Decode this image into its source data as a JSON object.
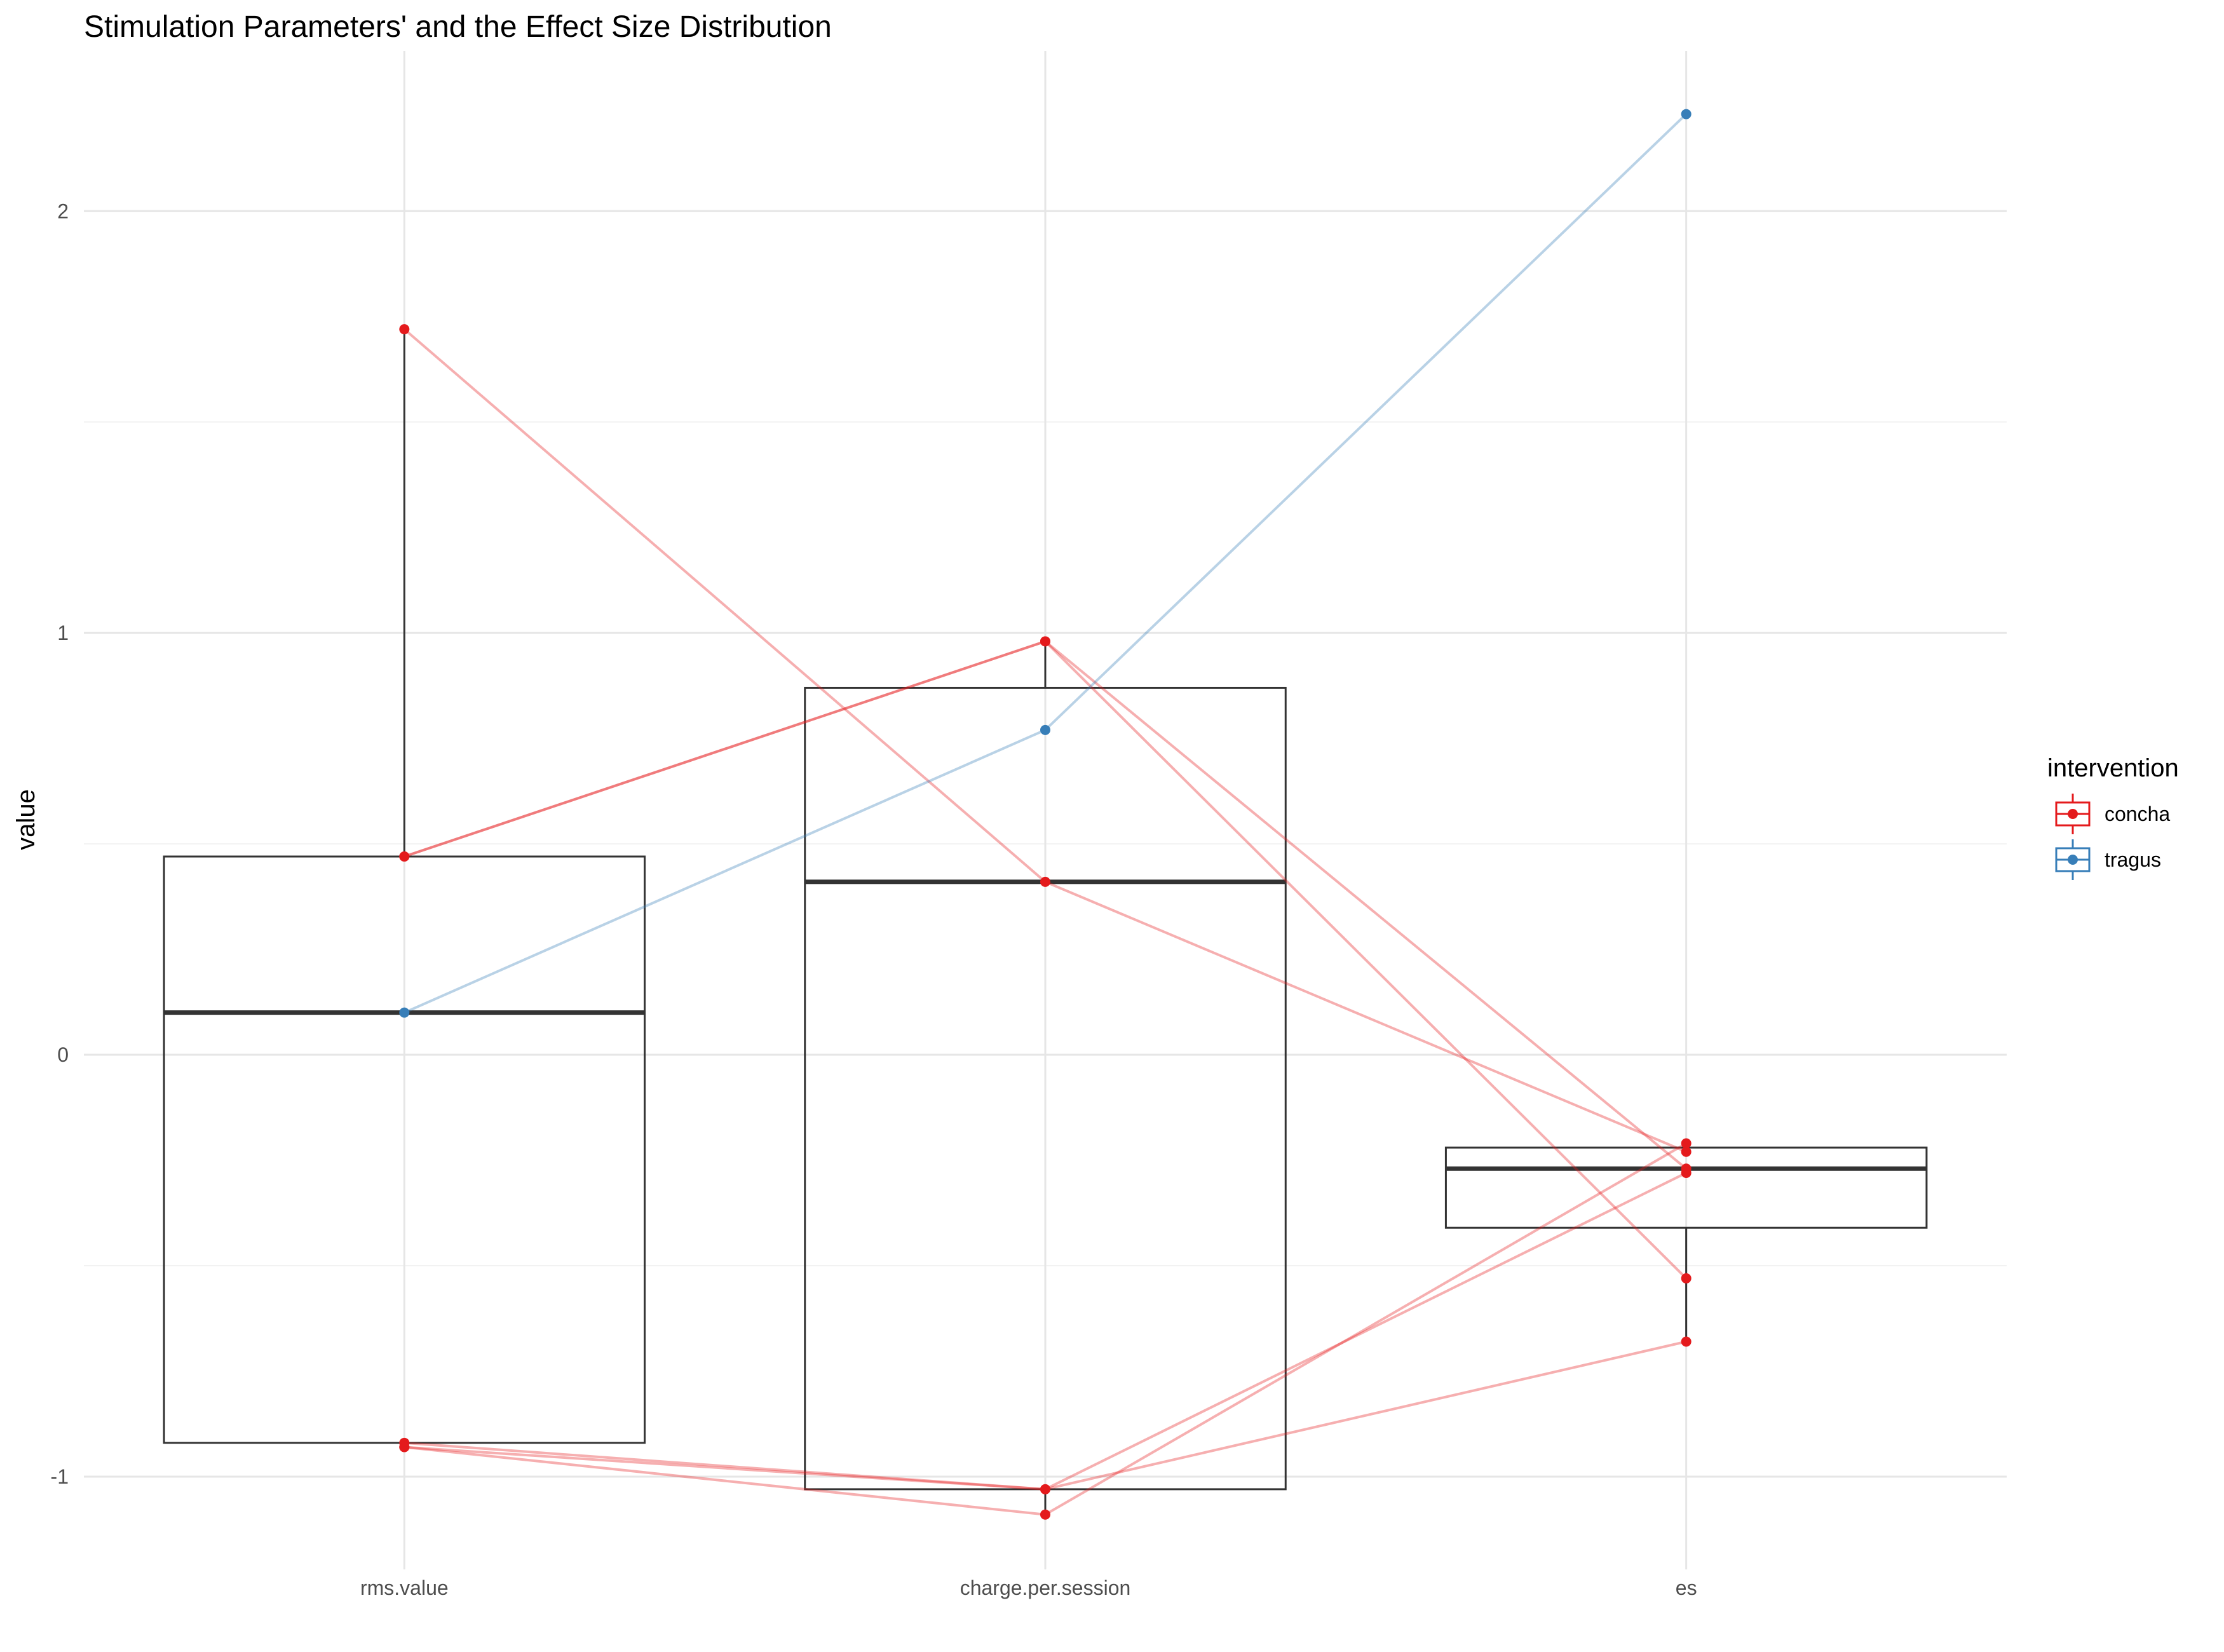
{
  "chart_data": {
    "type": "box",
    "title": "Stimulation Parameters' and the Effect Size Distribution",
    "xlabel": "",
    "ylabel": "value",
    "categories": [
      "rms.value",
      "charge.per.session",
      "es"
    ],
    "ylim": [
      -1.22,
      2.38
    ],
    "y_ticks": [
      -1,
      0,
      1,
      2
    ],
    "grid": true,
    "legend": {
      "title": "intervention",
      "position": "right",
      "entries": [
        {
          "name": "concha",
          "color": "#E41A1C"
        },
        {
          "name": "tragus",
          "color": "#377EB8"
        }
      ]
    },
    "boxes": [
      {
        "category": "rms.value",
        "q1": -0.92,
        "median": 0.1,
        "q3": 0.47,
        "whisker_low": -0.92,
        "whisker_high": 1.72
      },
      {
        "category": "charge.per.session",
        "q1": -1.03,
        "median": 0.41,
        "q3": 0.87,
        "whisker_low": -1.09,
        "whisker_high": 0.98
      },
      {
        "category": "es",
        "q1": -0.41,
        "median": -0.27,
        "q3": -0.22,
        "whisker_low": -0.68,
        "whisker_high": -0.21
      }
    ],
    "studies": [
      {
        "intervention": "concha",
        "values": [
          1.72,
          0.41,
          -0.23
        ]
      },
      {
        "intervention": "concha",
        "values": [
          0.47,
          0.98,
          -0.27
        ]
      },
      {
        "intervention": "concha",
        "values": [
          0.47,
          0.98,
          -0.53
        ]
      },
      {
        "intervention": "concha",
        "values": [
          -0.92,
          -1.03,
          -0.28
        ]
      },
      {
        "intervention": "concha",
        "values": [
          -0.93,
          -1.03,
          -0.68
        ]
      },
      {
        "intervention": "concha",
        "values": [
          -0.93,
          -1.09,
          -0.21
        ]
      },
      {
        "intervention": "tragus",
        "values": [
          0.1,
          0.77,
          2.23
        ]
      }
    ]
  }
}
